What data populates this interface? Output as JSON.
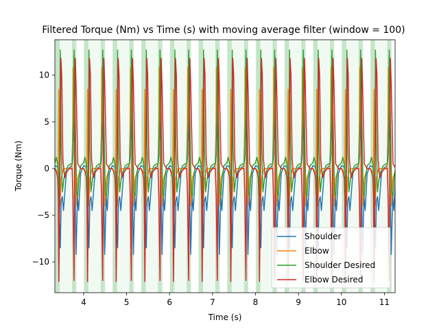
{
  "chart_data": {
    "type": "line",
    "title": "Filtered Torque (Nm) vs Time (s) with moving average filter (window = 100)",
    "xlabel": "Time (s)",
    "ylabel": "Torque (Nm)",
    "xlim": [
      3.33,
      11.25
    ],
    "ylim": [
      -13.3,
      13.8
    ],
    "x_ticks": [
      4,
      5,
      6,
      7,
      8,
      9,
      10,
      11
    ],
    "y_ticks": [
      -10,
      -5,
      0,
      5,
      10
    ],
    "legend_position": "lower-right",
    "cycle_start": 3.33,
    "cycle_period": 0.667,
    "cycle_count": 12,
    "shaded_regions": {
      "light": {
        "color": "#d8f2da",
        "opacity": 0.35,
        "spans": [
          [
            0.0,
            0.667
          ]
        ]
      },
      "dark": {
        "color": "#9fd4a6",
        "opacity": 0.55,
        "spans": [
          [
            0.02,
            0.17
          ],
          [
            0.6,
            0.75
          ]
        ]
      }
    },
    "series": [
      {
        "name": "Shoulder",
        "color": "#1f77b4",
        "phase": [
          0.0,
          0.1,
          0.14,
          0.16,
          0.19,
          0.22,
          0.26,
          0.3,
          0.4,
          0.5,
          0.56,
          0.6,
          0.63,
          0.65,
          0.66,
          0.67,
          0.7,
          0.74,
          0.79,
          0.83,
          0.9,
          1.0
        ],
        "values": [
          0.3,
          0.2,
          -1.0,
          -5.5,
          -8.5,
          -3.5,
          -3.0,
          -4.5,
          -0.5,
          0.1,
          0.2,
          0.5,
          5.0,
          3.0,
          6.0,
          12.0,
          -2.0,
          -9.2,
          -3.0,
          -4.5,
          -0.5,
          0.3
        ]
      },
      {
        "name": "Elbow",
        "color": "#ff7f0e",
        "phase": [
          0.0,
          0.05,
          0.1,
          0.12,
          0.14,
          0.18,
          0.22,
          0.3,
          0.4,
          0.5,
          0.58,
          0.62,
          0.64,
          0.66,
          0.7,
          0.74,
          0.8,
          0.9,
          1.0
        ],
        "values": [
          0.0,
          -0.2,
          -0.5,
          0.0,
          8.5,
          -4.0,
          -1.0,
          0.0,
          0.0,
          0.0,
          0.0,
          1.0,
          10.8,
          10.5,
          3.0,
          -4.0,
          -1.0,
          0.0,
          0.0
        ]
      },
      {
        "name": "Shoulder Desired",
        "color": "#2ca02c",
        "phase": [
          0.0,
          0.05,
          0.1,
          0.13,
          0.16,
          0.19,
          0.22,
          0.26,
          0.32,
          0.38,
          0.46,
          0.55,
          0.6,
          0.64,
          0.67,
          0.71,
          0.76,
          0.8,
          0.84,
          0.9,
          1.0
        ],
        "values": [
          0.6,
          1.2,
          0.5,
          -0.5,
          -4.0,
          12.7,
          2.5,
          -2.5,
          -1.0,
          -0.3,
          0.3,
          0.5,
          0.5,
          1.5,
          12.7,
          5.0,
          -2.5,
          -3.0,
          -1.0,
          0.3,
          0.6
        ]
      },
      {
        "name": "Elbow Desired",
        "color": "#d62728",
        "phase": [
          0.0,
          0.05,
          0.1,
          0.12,
          0.14,
          0.17,
          0.21,
          0.24,
          0.28,
          0.34,
          0.42,
          0.52,
          0.6,
          0.63,
          0.67,
          0.71,
          0.74,
          0.8,
          0.9,
          1.0
        ],
        "values": [
          0.0,
          -0.3,
          -1.0,
          -3.0,
          -12.1,
          -3.0,
          11.8,
          10.0,
          1.0,
          -1.0,
          -0.3,
          0.0,
          0.0,
          -3.0,
          -12.0,
          11.8,
          9.0,
          0.5,
          0.0,
          0.0
        ]
      }
    ]
  }
}
